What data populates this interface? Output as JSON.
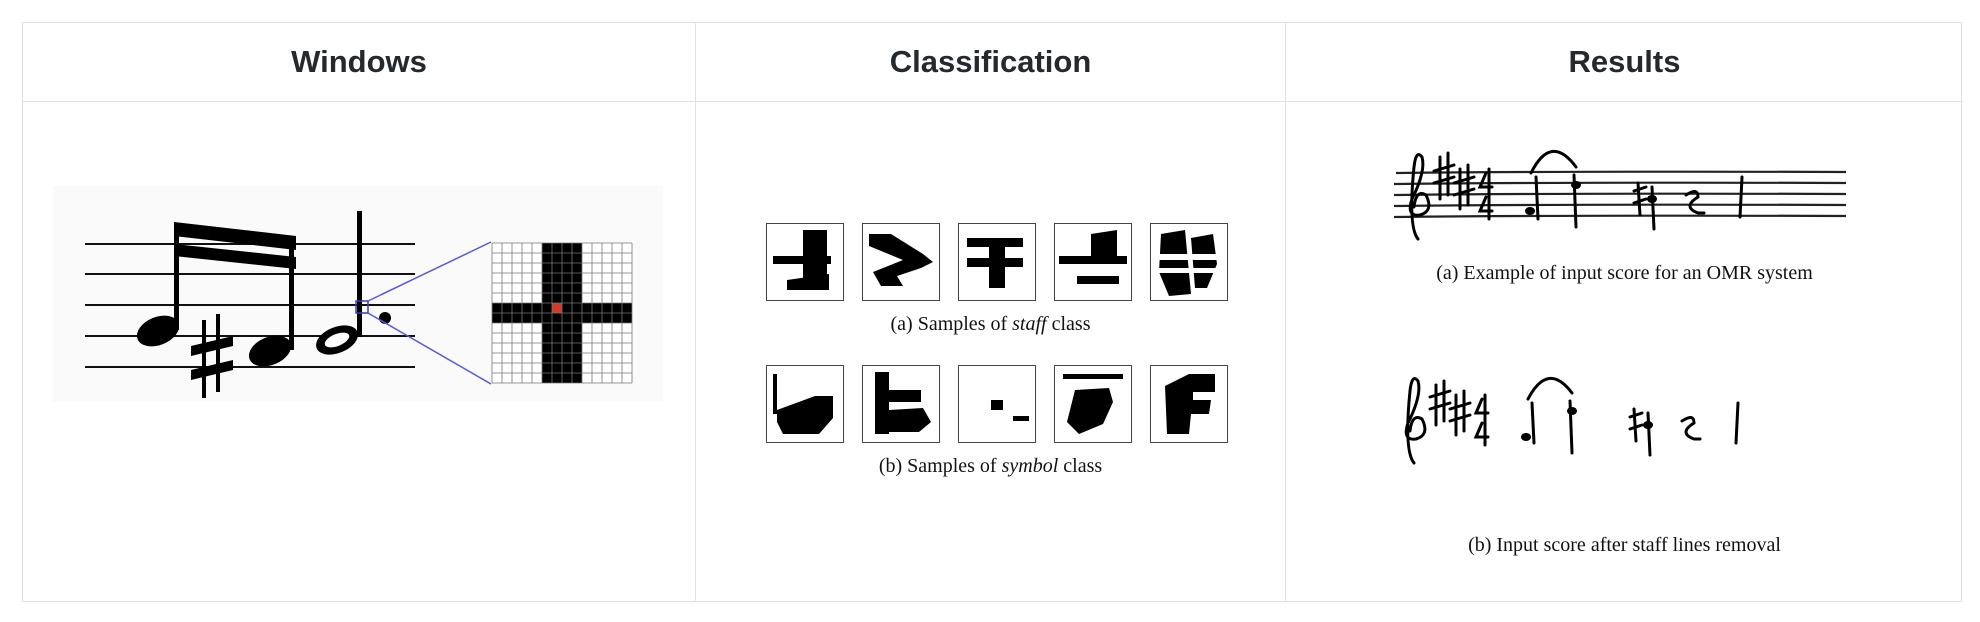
{
  "header": {
    "col1": "Windows",
    "col2": "Classification",
    "col3": "Results"
  },
  "classification": {
    "staff_caption_prefix": "(a) Samples of ",
    "staff_caption_term": "staff",
    "staff_caption_suffix": " class",
    "symbol_caption_prefix": "(b) Samples of ",
    "symbol_caption_term": "symbol",
    "symbol_caption_suffix": " class"
  },
  "results": {
    "caption_a": "(a) Example of input score for an OMR system",
    "caption_b": "(b) Input score after staff lines removal"
  },
  "colors": {
    "border": "#dfe2e5",
    "zoom_line": "#5a5ad6",
    "center_pixel": "#d23a2a",
    "ink": "#000000"
  },
  "icons": [
    "music-score-image",
    "pixel-window-zoom",
    "staff-sample-thumbnail",
    "symbol-sample-thumbnail",
    "handwritten-score-image"
  ]
}
